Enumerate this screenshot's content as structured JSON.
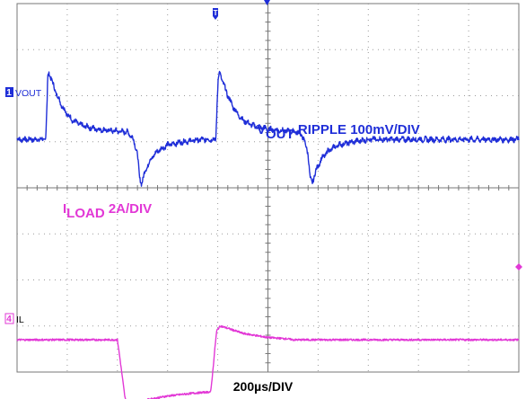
{
  "chart_data": {
    "type": "line",
    "title": "",
    "grid": true,
    "divisions": {
      "x": 10,
      "y": 8
    },
    "x_units": "div",
    "series": [
      {
        "channel_label": "VOUT",
        "channel_number": "1",
        "color": "#1f2ed8",
        "scale_text": "100mV/DIV",
        "reference_div": 1.05,
        "points": [
          [
            0.0,
            0.0
          ],
          [
            0.57,
            0.0
          ],
          [
            0.6,
            0.85
          ],
          [
            0.61,
            1.35
          ],
          [
            0.64,
            1.45
          ],
          [
            0.7,
            1.25
          ],
          [
            0.8,
            0.95
          ],
          [
            0.9,
            0.72
          ],
          [
            1.0,
            0.55
          ],
          [
            1.1,
            0.42
          ],
          [
            1.3,
            0.3
          ],
          [
            1.6,
            0.22
          ],
          [
            2.0,
            0.18
          ],
          [
            2.2,
            0.16
          ],
          [
            2.3,
            0.05
          ],
          [
            2.4,
            -0.3
          ],
          [
            2.44,
            -0.85
          ],
          [
            2.48,
            -0.95
          ],
          [
            2.55,
            -0.7
          ],
          [
            2.65,
            -0.45
          ],
          [
            2.8,
            -0.25
          ],
          [
            3.0,
            -0.12
          ],
          [
            3.3,
            -0.05
          ],
          [
            3.7,
            0.0
          ],
          [
            3.96,
            0.0
          ],
          [
            3.99,
            0.85
          ],
          [
            4.01,
            1.35
          ],
          [
            4.04,
            1.45
          ],
          [
            4.1,
            1.25
          ],
          [
            4.2,
            0.95
          ],
          [
            4.3,
            0.72
          ],
          [
            4.4,
            0.55
          ],
          [
            4.5,
            0.42
          ],
          [
            4.7,
            0.3
          ],
          [
            5.0,
            0.22
          ],
          [
            5.4,
            0.18
          ],
          [
            5.6,
            0.16
          ],
          [
            5.7,
            0.05
          ],
          [
            5.8,
            -0.3
          ],
          [
            5.84,
            -0.85
          ],
          [
            5.88,
            -0.95
          ],
          [
            5.95,
            -0.7
          ],
          [
            6.05,
            -0.45
          ],
          [
            6.2,
            -0.25
          ],
          [
            6.4,
            -0.12
          ],
          [
            6.7,
            -0.05
          ],
          [
            7.0,
            0.0
          ],
          [
            7.2,
            0.0
          ]
        ]
      },
      {
        "channel_label": "IL",
        "channel_number": "4",
        "color": "#e238d6",
        "scale_text": "2A/DIV",
        "reference_div": -2.5,
        "points": [
          [
            0.0,
            -0.8
          ],
          [
            2.0,
            -0.8
          ],
          [
            2.05,
            -1.2
          ],
          [
            2.15,
            -2.05
          ],
          [
            2.2,
            -2.25
          ],
          [
            2.35,
            -2.2
          ],
          [
            2.6,
            -2.1
          ],
          [
            3.0,
            -2.02
          ],
          [
            3.5,
            -1.96
          ],
          [
            3.86,
            -1.93
          ],
          [
            3.9,
            -1.5
          ],
          [
            3.95,
            -0.9
          ],
          [
            3.98,
            -0.6
          ],
          [
            4.05,
            -0.5
          ],
          [
            4.2,
            -0.55
          ],
          [
            4.5,
            -0.66
          ],
          [
            5.0,
            -0.75
          ],
          [
            5.4,
            -0.78
          ],
          [
            5.5,
            -0.8
          ],
          [
            7.2,
            -0.8
          ]
        ],
        "x_offset_per_repeat": 0
      }
    ],
    "xlabel": "200µs/DIV",
    "annotations": {
      "vout_main": "V",
      "vout_sub": "OUT",
      "vout_rest": "RIPPLE 100mV/DIV",
      "iload_main": "I",
      "iload_sub": "LOAD",
      "iload_rest": "2A/DIV"
    },
    "trigger_marker": "T"
  }
}
